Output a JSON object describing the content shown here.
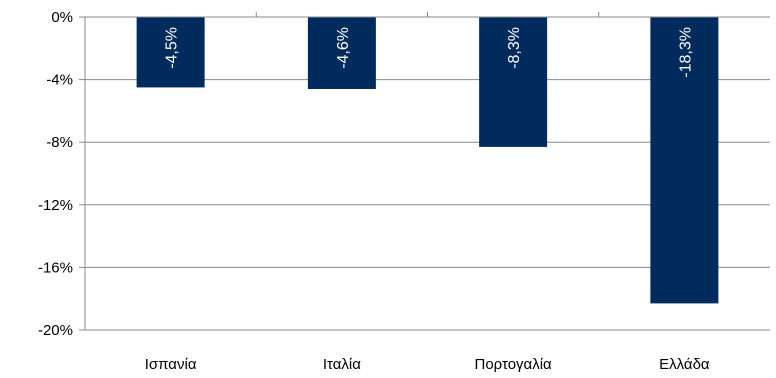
{
  "chart_data": {
    "type": "bar",
    "categories": [
      "Ισπανία",
      "Ιταλία",
      "Πορτογαλία",
      "Ελλάδα"
    ],
    "values": [
      -4.5,
      -4.6,
      -8.3,
      -18.3
    ],
    "data_labels": [
      "-4,5%",
      "-4,6%",
      "-8,3%",
      "-18,3%"
    ],
    "y_ticks": [
      0,
      -4,
      -8,
      -12,
      -16,
      -20
    ],
    "y_tick_labels": [
      "0%",
      "-4%",
      "-8%",
      "-12%",
      "-16%",
      "-20%"
    ],
    "ylim": [
      -20,
      0
    ],
    "grid": true,
    "title": "",
    "xlabel": "",
    "ylabel": "",
    "bar_color": "#002B5C",
    "grid_color": "#888888",
    "axis_color": "#888888"
  }
}
